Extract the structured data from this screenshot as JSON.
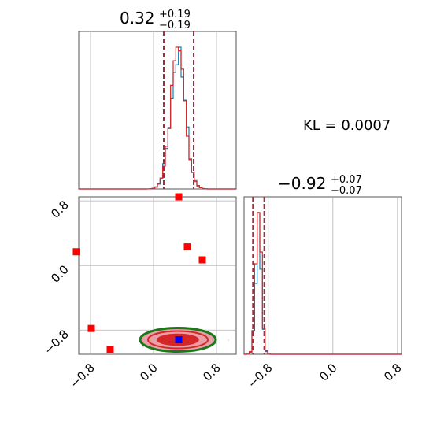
{
  "chart_data": {
    "type": "corner",
    "parameters": [
      {
        "median": "0.32",
        "plus": "+0.19",
        "minus": "−0.19",
        "range": [
          -0.95,
          1.05
        ],
        "quantiles": [
          0.13,
          0.51
        ],
        "center": 0.31,
        "sigma": 0.095
      },
      {
        "median": "−0.92",
        "plus": "+0.07",
        "minus": "−0.07",
        "range": [
          -1.1,
          0.85
        ],
        "quantiles": [
          -0.99,
          -0.85
        ],
        "center": -0.92,
        "sigma": 0.035
      }
    ],
    "title_1": {
      "main": "0.32",
      "sup": "+0.19",
      "sub": "−0.19"
    },
    "title_2": {
      "main": "−0.92",
      "sup": "+0.07",
      "sub": "−0.07"
    },
    "annotation": "KL = 0.0007",
    "ticks": {
      "x": [
        {
          "value": -0.8,
          "label": "−0.8"
        },
        {
          "value": 0.0,
          "label": "0.0"
        },
        {
          "value": 0.8,
          "label": "0.8"
        }
      ],
      "y": [
        {
          "value": 0.8,
          "label": "0.8"
        },
        {
          "value": 0.0,
          "label": "0.0"
        },
        {
          "value": -0.8,
          "label": "−0.8"
        }
      ]
    },
    "red_markers": [
      {
        "x": -0.98,
        "y": 0.17
      },
      {
        "x": -0.79,
        "y": -0.78
      },
      {
        "x": -0.55,
        "y": -1.04
      },
      {
        "x": 0.32,
        "y": 0.85
      },
      {
        "x": 0.43,
        "y": 0.23
      },
      {
        "x": 0.62,
        "y": 0.07
      }
    ],
    "blue_marker": {
      "x": 0.32,
      "y": -0.92
    },
    "grid": true,
    "colors": {
      "hist_blue": "#1f77b4",
      "hist_red": "#d62728",
      "quantile": "#9b3040",
      "contour_green": "#1a7a1a",
      "contour_red": "#d62728",
      "contour_pink": "#e8a0a8",
      "marker_red": "#ff0000",
      "marker_blue": "#0000ff",
      "grid": "#b0b0b0"
    }
  }
}
